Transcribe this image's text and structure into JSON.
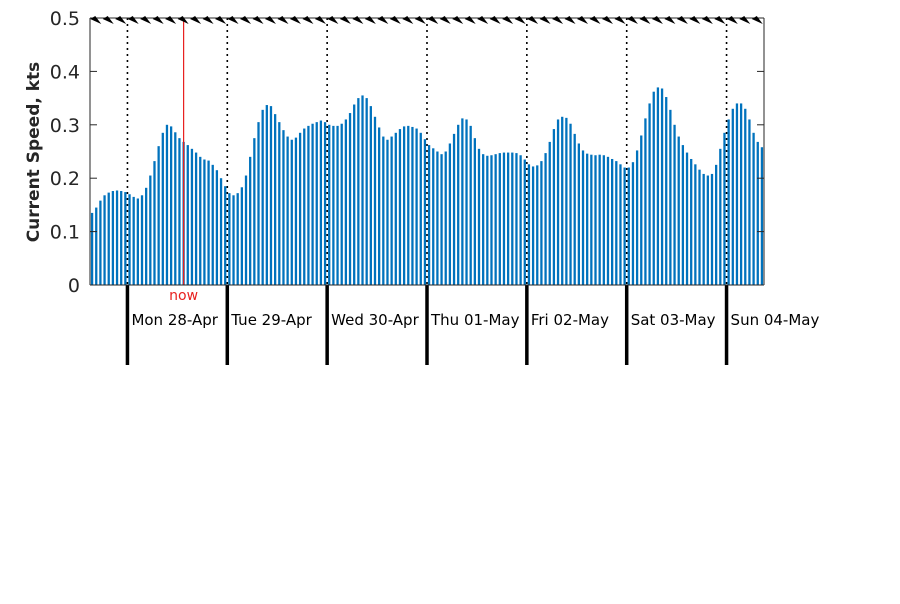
{
  "chart_data": {
    "type": "bar",
    "title": "",
    "xlabel": "",
    "ylabel": "Current Speed, kts",
    "ylim": [
      0,
      0.5
    ],
    "yticks": [
      "0",
      "0.1",
      "0.2",
      "0.3",
      "0.4",
      "0.5"
    ],
    "grid": false,
    "legend": "none",
    "bar_color": "#0072BD",
    "now_color": "#E8201F",
    "now_label": "now",
    "now_position_hours": 22.5,
    "hours_per_bar": 1,
    "days": [
      "Mon 28-Apr",
      "Tue 29-Apr",
      "Wed 30-Apr",
      "Thu 01-May",
      "Fri 02-May",
      "Sat 03-May",
      "Sun 04-May"
    ],
    "series": [
      {
        "values": [
          0.135,
          0.145,
          0.158,
          0.168,
          0.173,
          0.176,
          0.177,
          0.176,
          0.174,
          0.17,
          0.165,
          0.162,
          0.168,
          0.182,
          0.205,
          0.232,
          0.26,
          0.285,
          0.3,
          0.297,
          0.286,
          0.275,
          0.268,
          0.262,
          0.255,
          0.248,
          0.24,
          0.235,
          0.233,
          0.225,
          0.215,
          0.2,
          0.185,
          0.172,
          0.168,
          0.172,
          0.183,
          0.205,
          0.24,
          0.275,
          0.305,
          0.328,
          0.337,
          0.335,
          0.32,
          0.305,
          0.29,
          0.278,
          0.272,
          0.276,
          0.285,
          0.293,
          0.298,
          0.302,
          0.305,
          0.308,
          0.305,
          0.3,
          0.298,
          0.298,
          0.302,
          0.31,
          0.322,
          0.338,
          0.35,
          0.355,
          0.35,
          0.335,
          0.315,
          0.295,
          0.278,
          0.272,
          0.278,
          0.285,
          0.292,
          0.297,
          0.298,
          0.296,
          0.293,
          0.285,
          0.273,
          0.262,
          0.256,
          0.25,
          0.245,
          0.25,
          0.265,
          0.283,
          0.3,
          0.312,
          0.31,
          0.298,
          0.275,
          0.255,
          0.245,
          0.242,
          0.243,
          0.245,
          0.247,
          0.248,
          0.248,
          0.248,
          0.247,
          0.243,
          0.235,
          0.226,
          0.222,
          0.224,
          0.232,
          0.247,
          0.268,
          0.292,
          0.31,
          0.315,
          0.313,
          0.302,
          0.283,
          0.265,
          0.252,
          0.246,
          0.244,
          0.243,
          0.244,
          0.243,
          0.24,
          0.236,
          0.232,
          0.226,
          0.22,
          0.22,
          0.23,
          0.252,
          0.28,
          0.312,
          0.34,
          0.362,
          0.37,
          0.368,
          0.352,
          0.328,
          0.3,
          0.278,
          0.262,
          0.248,
          0.236,
          0.226,
          0.216,
          0.208,
          0.205,
          0.208,
          0.225,
          0.255,
          0.285,
          0.31,
          0.33,
          0.34,
          0.34,
          0.33,
          0.31,
          0.285,
          0.268,
          0.258
        ]
      }
    ]
  }
}
